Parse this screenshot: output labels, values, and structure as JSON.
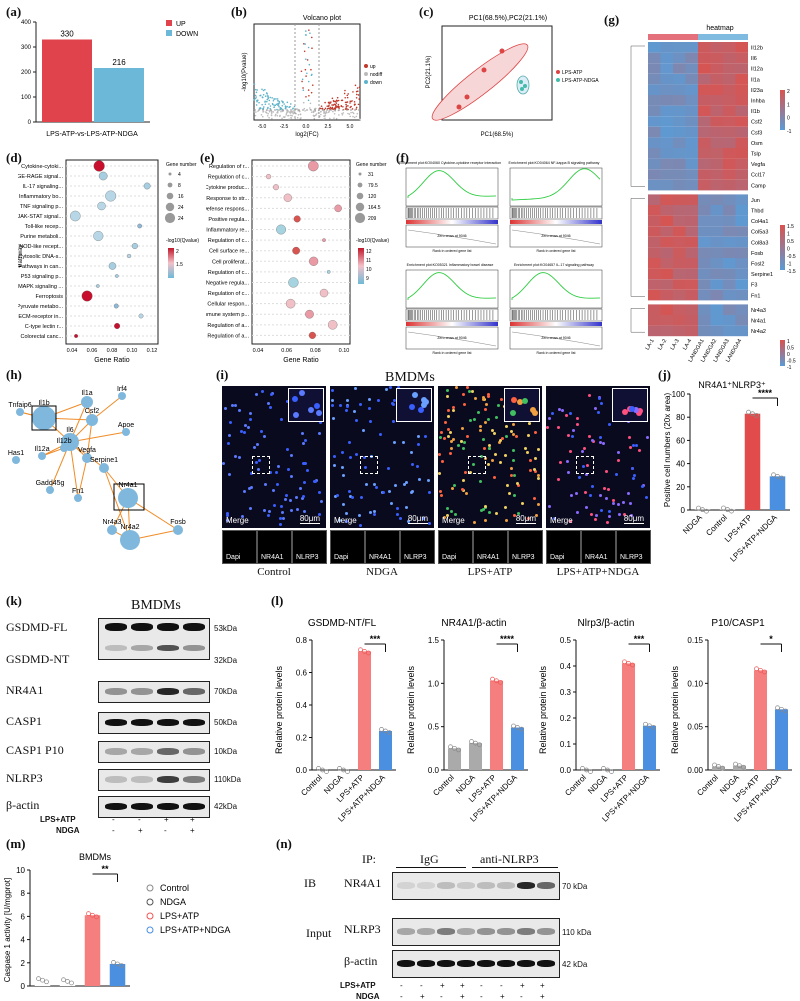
{
  "labels": {
    "a": "(a)",
    "b": "(b)",
    "c": "(c)",
    "d": "(d)",
    "e": "(e)",
    "f": "(f)",
    "g": "(g)",
    "h": "(h)",
    "i": "(i)",
    "j": "(j)",
    "k": "(k)",
    "l": "(l)",
    "m": "(m)",
    "n": "(n)"
  },
  "colors": {
    "up": "#e0434b",
    "down": "#6cb8d8",
    "red": "#e63b3b",
    "blue": "#4a8fe0",
    "lightred": "#f08080"
  },
  "panel_a": {
    "legend_up": "UP",
    "legend_down": "DOWN",
    "xlabel": "LPS-ATP-vs-LPS-ATP-NDGA",
    "yticks": [
      "0",
      "100",
      "200",
      "300",
      "400"
    ]
  },
  "panel_b": {
    "title": "Volcano plot",
    "ylabel": "-log10(Pvalue)",
    "xlabel": "log2(FC)",
    "legend": [
      "up",
      "nodiff",
      "down"
    ],
    "xticks": [
      "-5.0",
      "-2.5",
      "0.0",
      "2.5",
      "5.0"
    ],
    "yticks": [
      "0",
      "10",
      "20",
      "30",
      "40"
    ]
  },
  "panel_c": {
    "title": "PC1(68.5%),PC2(21.1%)",
    "xlabel": "PC1(68.5%)",
    "ylabel": "PC2(21.1%)",
    "legend": [
      "LPS-ATP",
      "LPS-ATP-NDGA"
    ],
    "xticks": [
      "-10000",
      "-5000",
      "0",
      "5000"
    ],
    "yticks": [
      "-10000",
      "-5000",
      "0",
      "5000",
      "10000"
    ]
  },
  "panel_d": {
    "ylabel": "Pathway",
    "xlabel": "Gene Ratio",
    "xticks": [
      "0.04",
      "0.06",
      "0.08",
      "0.10",
      "0.12"
    ],
    "terms": [
      "Cytokine-cytoki...",
      "AGE-RAGE signal...",
      "IL-17 signaling...",
      "Inflammatory bo...",
      "TNF signaling p...",
      "JAK-STAT signal...",
      "Toll-like recep...",
      "Purine metaboli...",
      "NOD-like recept...",
      "Cytosolic DNA-s...",
      "Pathways in can...",
      "P53 signaling p...",
      "MAPK signaling ...",
      "Ferroptosis",
      "Pyruvate metabo...",
      "ECM-receptor in...",
      "C-type lectin r...",
      "Colorectal canc..."
    ],
    "size_legend_title": "Gene number",
    "size_legend": [
      "4",
      "8",
      "16",
      "24",
      "24"
    ],
    "color_legend_title": "-log10(Qvalue)",
    "color_legend": [
      "2",
      "1.5"
    ]
  },
  "panel_e": {
    "xlabel": "Gene Ratio",
    "xticks": [
      "0.04",
      "0.06",
      "0.08",
      "0.10"
    ],
    "terms": [
      "Regulation of r...",
      "Regulation of c...",
      "Cytokine produc...",
      "Response to str...",
      "Defense respons...",
      "Positive regula...",
      "Inflammatory re...",
      "Regulation of c...",
      "Cell surface re...",
      "Cell proliferat...",
      "Regulation of c...",
      "Negative regula...",
      "Regulation of c...",
      "Cellular respon...",
      "Immune system p...",
      "Regulation of a...",
      "Regulation of a..."
    ],
    "size_legend_title": "Gene number",
    "size_legend": [
      "31",
      "79.5",
      "120",
      "164.5",
      "209"
    ],
    "color_legend_title": "-log10(Qvalue)",
    "color_legend": [
      "12",
      "11",
      "10",
      "9"
    ]
  },
  "panel_f": {
    "titles": [
      "Enrichment plot:KO04060 Cytokine-cytokine receptor interaction",
      "Enrichment plot:KO04064 NF-kappa B signaling pathway",
      "Enrichment plot:KO05321 Inflammatory bowel disease",
      "Enrichment plot:KO04657 IL-17 signaling pathway"
    ],
    "zero_cross": "Zero cross at 9046",
    "xlabel": "Rank in ordered gene list"
  },
  "panel_g": {
    "title": "heatmap",
    "genes_top": [
      "Il12b",
      "Il6",
      "Il12a",
      "Il1a",
      "Il23a",
      "Inhba",
      "Il1b",
      "Csf2",
      "Csf3",
      "Osm",
      "Tslp",
      "Vegfa",
      "Ccl17",
      "Camp"
    ],
    "genes_mid": [
      "Jun",
      "Thbd",
      "Col4a1",
      "Col5a3",
      "Col8a3",
      "Fosb",
      "Fosl2",
      "Serpine1",
      "F3",
      "Fn1"
    ],
    "genes_bot": [
      "Nr4a3",
      "Nr4a1",
      "Nr4a2"
    ],
    "samples": [
      "LA-1",
      "LA-2",
      "LA-3",
      "LA-4",
      "LANDGA1",
      "LANDGA2",
      "LANDGA3",
      "LANDGA4"
    ],
    "scale1": [
      "2",
      "1",
      "0",
      "-1"
    ],
    "scale2": [
      "1.5",
      "1",
      "0.5",
      "0",
      "-0.5",
      "-1",
      "-1.5"
    ],
    "scale3": [
      "1",
      "0.5",
      "0",
      "-0.5",
      "-1"
    ]
  },
  "panel_h": {
    "nodes": [
      "Il1a",
      "Irf4",
      "Tnfaip6",
      "Il1b",
      "Csf2",
      "Apoe",
      "Il6",
      "Has1",
      "Il12b",
      "Il12a",
      "Vegfa",
      "Serpine1",
      "Gadd45g",
      "Fn1",
      "Nr4a1",
      "Fosb",
      "Nr4a3",
      "Nr4a2"
    ]
  },
  "panel_i": {
    "title": "BMDMs",
    "groups": [
      "Control",
      "NDGA",
      "LPS+ATP",
      "LPS+ATP+NDGA"
    ],
    "merge": "Merge",
    "scale": "80μm",
    "channels": [
      "Dapi",
      "NR4A1",
      "NLRP3"
    ]
  },
  "panel_j": {
    "title": "NR4A1⁺NLRP3⁺",
    "ylabel": "Positive cell numbers (20x area)",
    "yticks": [
      "0",
      "20",
      "40",
      "60",
      "80",
      "100"
    ],
    "groups": [
      "NDGA",
      "Control",
      "LPS+ATP",
      "LPS+ATP+NDGA"
    ],
    "sig": "****"
  },
  "panel_k": {
    "title": "BMDMs",
    "rows": [
      "GSDMD-FL",
      "GSDMD-NT",
      "NR4A1",
      "CASP1",
      "CASP1 P10",
      "NLRP3",
      "β-actin"
    ],
    "kda": [
      "53kDa",
      "32kDa",
      "70kDa",
      "50kDa",
      "10kDa",
      "110kDa",
      "42kDa"
    ],
    "lps_label": "LPS+ATP",
    "ndga_label": "NDGA",
    "lps": [
      "-",
      "-",
      "+",
      "+"
    ],
    "ndga": [
      "-",
      "+",
      "-",
      "+"
    ]
  },
  "panel_l": {
    "ylabel": "Relative protein levels",
    "groups": [
      "Control",
      "NDGA",
      "LPS+ATP",
      "LPS+ATP+NDGA"
    ],
    "charts": [
      {
        "title": "GSDMD-NT/FL",
        "yticks": [
          "0.0",
          "0.2",
          "0.4",
          "0.6",
          "0.8"
        ],
        "ymax": 0.8,
        "values": [
          0.0,
          0.0,
          0.73,
          0.24
        ],
        "sig": "***"
      },
      {
        "title": "NR4A1/β-actin",
        "yticks": [
          "0.0",
          "0.5",
          "1.0",
          "1.5"
        ],
        "ymax": 1.5,
        "values": [
          0.25,
          0.31,
          1.03,
          0.49
        ],
        "sig": "****"
      },
      {
        "title": "Nlrp3/β-actin",
        "yticks": [
          "0.0",
          "0.1",
          "0.2",
          "0.3",
          "0.4",
          "0.5"
        ],
        "ymax": 0.5,
        "values": [
          0.0,
          0.0,
          0.41,
          0.17
        ],
        "sig": "***"
      },
      {
        "title": "P10/CASP1",
        "yticks": [
          "0.00",
          "0.05",
          "0.10",
          "0.15"
        ],
        "ymax": 0.15,
        "values": [
          0.004,
          0.005,
          0.115,
          0.07
        ],
        "sig": "*"
      }
    ]
  },
  "panel_m": {
    "title": "BMDMs",
    "ylabel": "Caspase 1 activity [U/mgprot]",
    "yticks": [
      "0",
      "2",
      "4",
      "6",
      "8",
      "10"
    ],
    "legend": [
      "Control",
      "NDGA",
      "LPS+ATP",
      "LPS+ATP+NDGA"
    ],
    "sig": "**"
  },
  "panel_n": {
    "ip": "IP:",
    "igg": "IgG",
    "anti": "anti-NLRP3",
    "ib": "IB",
    "input": "Input",
    "rows": [
      "NR4A1",
      "NLRP3",
      "β-actin"
    ],
    "kda": [
      "70 kDa",
      "110 kDa",
      "42 kDa"
    ],
    "lps_label": "LPS+ATP",
    "ndga_label": "NDGA",
    "lps": [
      "-",
      "-",
      "+",
      "+",
      "-",
      "-",
      "+",
      "+"
    ],
    "ndga": [
      "-",
      "+",
      "-",
      "+",
      "-",
      "+",
      "-",
      "+"
    ]
  },
  "chart_data": [
    {
      "type": "bar",
      "title": "",
      "categories": [
        "UP",
        "DOWN"
      ],
      "values": [
        330,
        216
      ],
      "xlabel": "LPS-ATP-vs-LPS-ATP-NDGA",
      "ylim": [
        0,
        400
      ]
    },
    {
      "type": "bar",
      "title": "NR4A1⁺NLRP3⁺",
      "categories": [
        "NDGA",
        "Control",
        "LPS+ATP",
        "LPS+ATP+NDGA"
      ],
      "values": [
        0.3,
        0.4,
        83,
        29
      ],
      "ylabel": "Positive cell numbers (20x area)",
      "ylim": [
        0,
        100
      ]
    },
    {
      "type": "bar",
      "title": "BMDMs",
      "categories": [
        "Control",
        "NDGA",
        "LPS+ATP",
        "LPS+ATP+NDGA"
      ],
      "values": [
        0.5,
        0.4,
        6.1,
        1.9
      ],
      "ylabel": "Caspase 1 activity [U/mgprot]",
      "ylim": [
        0,
        10
      ]
    }
  ]
}
